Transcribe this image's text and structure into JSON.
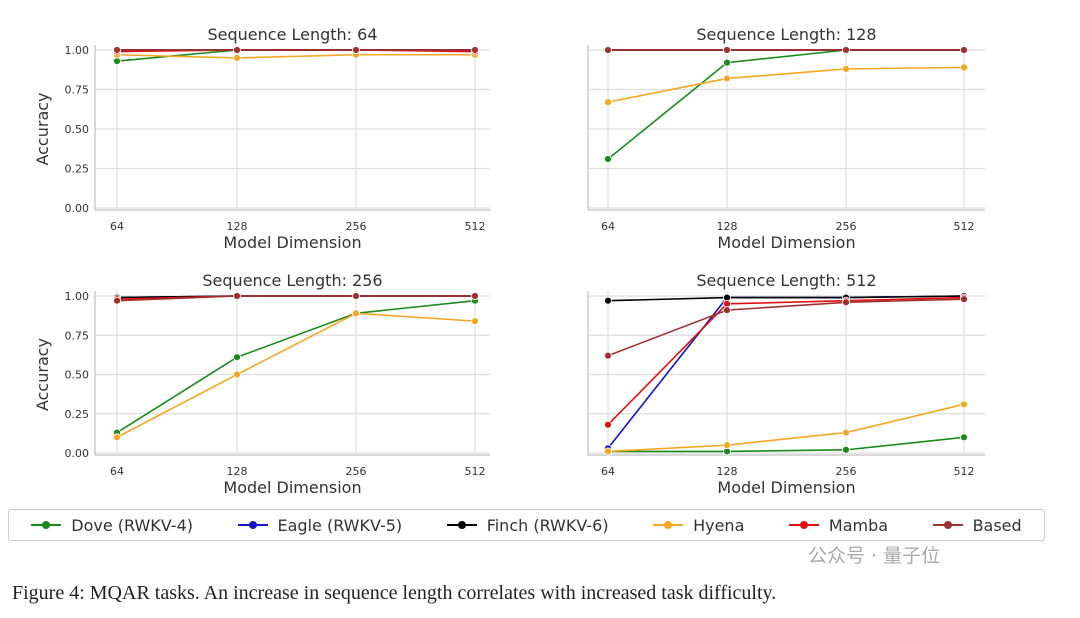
{
  "chart_data": [
    {
      "type": "line",
      "title": "Sequence Length: 64",
      "xlabel": "Model Dimension",
      "ylabel": "Accuracy",
      "categories": [
        "64",
        "128",
        "256",
        "512"
      ],
      "ylim": [
        0,
        1
      ],
      "yticks": [
        "0.00",
        "0.25",
        "0.50",
        "0.75",
        "1.00"
      ],
      "grid": true,
      "series": [
        {
          "name": "Dove (RWKV-4)",
          "values": [
            0.93,
            1.0,
            1.0,
            1.0
          ]
        },
        {
          "name": "Eagle (RWKV-5)",
          "values": [
            1.0,
            1.0,
            1.0,
            1.0
          ]
        },
        {
          "name": "Finch (RWKV-6)",
          "values": [
            1.0,
            1.0,
            1.0,
            1.0
          ]
        },
        {
          "name": "Hyena",
          "values": [
            0.97,
            0.95,
            0.97,
            0.97
          ]
        },
        {
          "name": "Mamba",
          "values": [
            0.99,
            1.0,
            1.0,
            0.99
          ]
        },
        {
          "name": "Based",
          "values": [
            1.0,
            1.0,
            1.0,
            1.0
          ]
        }
      ]
    },
    {
      "type": "line",
      "title": "Sequence Length: 128",
      "xlabel": "Model Dimension",
      "ylabel": "",
      "categories": [
        "64",
        "128",
        "256",
        "512"
      ],
      "ylim": [
        0,
        1
      ],
      "yticks": [],
      "grid": true,
      "series": [
        {
          "name": "Dove (RWKV-4)",
          "values": [
            0.31,
            0.92,
            1.0,
            1.0
          ]
        },
        {
          "name": "Eagle (RWKV-5)",
          "values": [
            1.0,
            1.0,
            1.0,
            1.0
          ]
        },
        {
          "name": "Finch (RWKV-6)",
          "values": [
            1.0,
            1.0,
            1.0,
            1.0
          ]
        },
        {
          "name": "Hyena",
          "values": [
            0.67,
            0.82,
            0.88,
            0.89
          ]
        },
        {
          "name": "Mamba",
          "values": [
            1.0,
            1.0,
            1.0,
            1.0
          ]
        },
        {
          "name": "Based",
          "values": [
            1.0,
            1.0,
            1.0,
            1.0
          ]
        }
      ]
    },
    {
      "type": "line",
      "title": "Sequence Length: 256",
      "xlabel": "Model Dimension",
      "ylabel": "Accuracy",
      "categories": [
        "64",
        "128",
        "256",
        "512"
      ],
      "ylim": [
        0,
        1
      ],
      "yticks": [
        "0.00",
        "0.25",
        "0.50",
        "0.75",
        "1.00"
      ],
      "grid": true,
      "series": [
        {
          "name": "Dove (RWKV-4)",
          "values": [
            0.13,
            0.61,
            0.89,
            0.97
          ]
        },
        {
          "name": "Eagle (RWKV-5)",
          "values": [
            0.99,
            1.0,
            1.0,
            1.0
          ]
        },
        {
          "name": "Finch (RWKV-6)",
          "values": [
            0.99,
            1.0,
            1.0,
            1.0
          ]
        },
        {
          "name": "Hyena",
          "values": [
            0.1,
            0.5,
            0.89,
            0.84
          ]
        },
        {
          "name": "Mamba",
          "values": [
            0.98,
            1.0,
            1.0,
            1.0
          ]
        },
        {
          "name": "Based",
          "values": [
            0.97,
            1.0,
            1.0,
            1.0
          ]
        }
      ]
    },
    {
      "type": "line",
      "title": "Sequence Length: 512",
      "xlabel": "Model Dimension",
      "ylabel": "",
      "categories": [
        "64",
        "128",
        "256",
        "512"
      ],
      "ylim": [
        0,
        1
      ],
      "yticks": [],
      "grid": true,
      "series": [
        {
          "name": "Dove (RWKV-4)",
          "values": [
            0.01,
            0.01,
            0.02,
            0.1
          ]
        },
        {
          "name": "Eagle (RWKV-5)",
          "values": [
            0.03,
            0.99,
            0.99,
            1.0
          ]
        },
        {
          "name": "Finch (RWKV-6)",
          "values": [
            0.97,
            0.99,
            0.99,
            1.0
          ]
        },
        {
          "name": "Hyena",
          "values": [
            0.01,
            0.05,
            0.13,
            0.31
          ]
        },
        {
          "name": "Mamba",
          "values": [
            0.18,
            0.95,
            0.97,
            0.99
          ]
        },
        {
          "name": "Based",
          "values": [
            0.62,
            0.91,
            0.96,
            0.98
          ]
        }
      ]
    }
  ],
  "legend": {
    "placement": "bottom",
    "items": [
      {
        "label": "Dove (RWKV-4)",
        "color": "#1a8a1a"
      },
      {
        "label": "Eagle (RWKV-5)",
        "color": "#1414c8"
      },
      {
        "label": "Finch (RWKV-6)",
        "color": "#000000"
      },
      {
        "label": "Hyena",
        "color": "#f5a623"
      },
      {
        "label": "Mamba",
        "color": "#e01010"
      },
      {
        "label": "Based",
        "color": "#a03030"
      }
    ]
  },
  "caption": "Figure 4: MQAR tasks. An increase in sequence length correlates with increased task difficulty.",
  "watermark": "公众号 · 量子位"
}
